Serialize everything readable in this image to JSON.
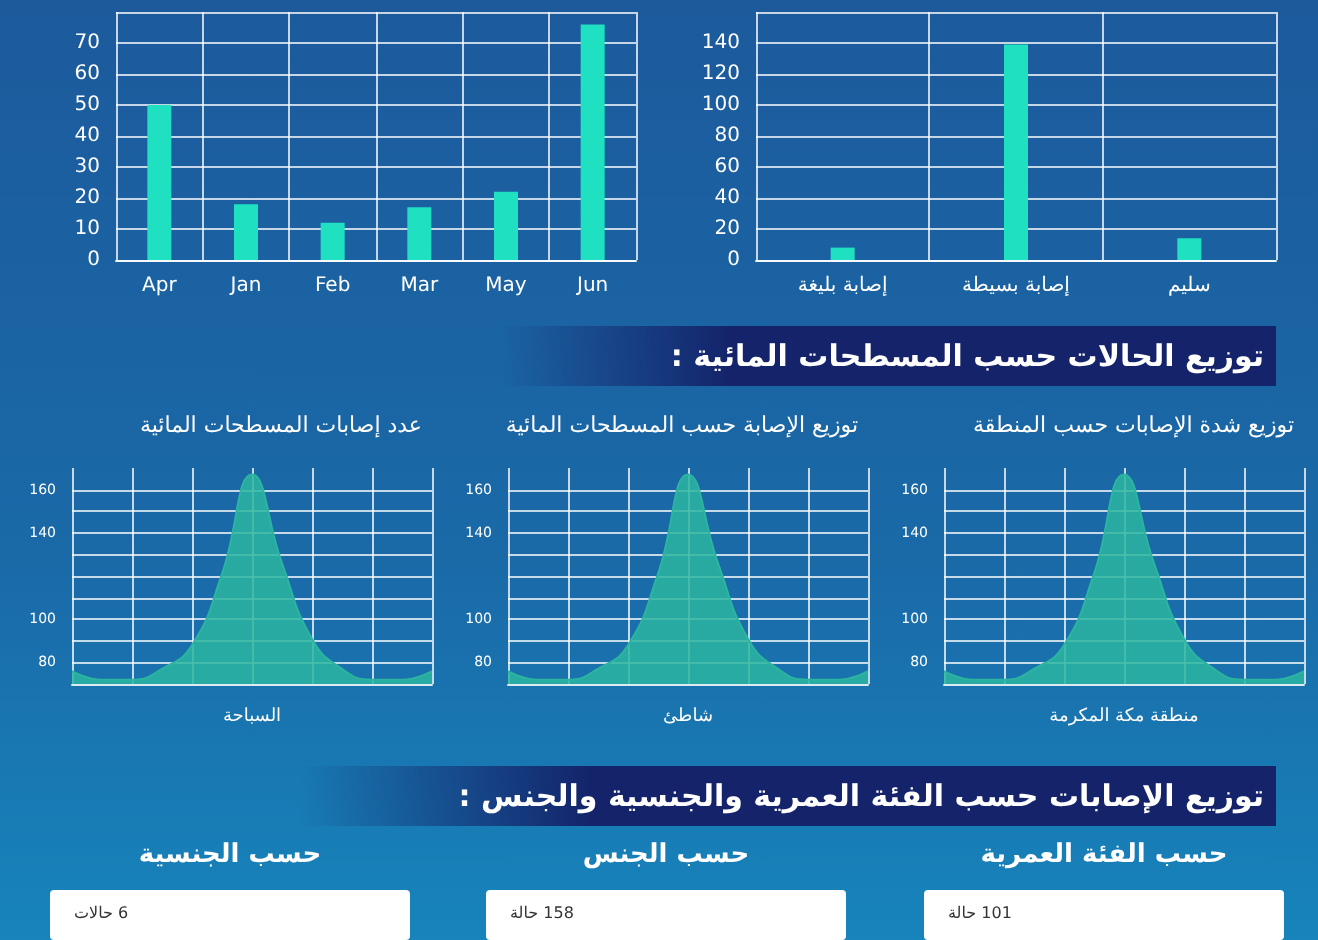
{
  "chart_data": [
    {
      "type": "bar",
      "categories": [
        "Apr",
        "Jan",
        "Feb",
        "Mar",
        "May",
        "Jun"
      ],
      "values": [
        50,
        18,
        12,
        17,
        22,
        76
      ],
      "color": "#1fe0c0",
      "ylim": [
        0,
        80
      ],
      "yticks": [
        0,
        10,
        20,
        30,
        40,
        50,
        60,
        70,
        {
          "value": 80,
          "label": null
        }
      ],
      "grid": true
    },
    {
      "type": "bar",
      "categories": [
        "إصابة بليغة",
        "إصابة بسيطة",
        "سليم"
      ],
      "values": [
        8,
        139,
        14
      ],
      "color": "#1fe0c0",
      "ylim": [
        0,
        160
      ],
      "yticks": [
        0,
        20,
        40,
        60,
        80,
        100,
        120,
        140,
        {
          "value": 160,
          "label": null
        }
      ],
      "grid": true
    },
    {
      "type": "other",
      "title": "توزيع الحالات حسب المسطحات المائية :"
    },
    {
      "type": "area",
      "title": "عدد إصابات المسطحات المائية",
      "xlabel": "السباحة",
      "categories": [
        null,
        null,
        null,
        null,
        null,
        null,
        null,
        null,
        null,
        null,
        null,
        null,
        null
      ],
      "values": [
        76,
        72,
        72,
        77,
        88,
        121,
        167,
        126,
        91,
        77,
        72,
        72,
        76
      ],
      "color": "#2bb5a0",
      "ylim": [
        70,
        170
      ],
      "yticks": [
        80,
        {
          "value": 90,
          "label": null
        },
        100,
        {
          "value": 110,
          "label": null
        },
        {
          "value": 120,
          "label": null
        },
        {
          "value": 130,
          "label": null
        },
        140,
        {
          "value": 150,
          "label": null
        },
        160
      ],
      "grid": true
    },
    {
      "type": "area",
      "title": "توزيع الإصابة حسب المسطحات المائية",
      "xlabel": "شاطئ",
      "categories": [
        null,
        null,
        null,
        null,
        null,
        null,
        null,
        null,
        null,
        null,
        null,
        null,
        null
      ],
      "values": [
        76,
        72,
        72,
        77,
        88,
        121,
        167,
        126,
        91,
        77,
        72,
        72,
        76
      ],
      "color": "#2bb5a0",
      "ylim": [
        70,
        170
      ],
      "yticks": [
        80,
        {
          "value": 90,
          "label": null
        },
        100,
        {
          "value": 110,
          "label": null
        },
        {
          "value": 120,
          "label": null
        },
        {
          "value": 130,
          "label": null
        },
        140,
        {
          "value": 150,
          "label": null
        },
        160
      ],
      "grid": true
    },
    {
      "type": "area",
      "title": "توزيع شدة الإصابات حسب المنطقة",
      "xlabel": "منطقة مكة المكرمة",
      "categories": [
        null,
        null,
        null,
        null,
        null,
        null,
        null,
        null,
        null,
        null,
        null,
        null,
        null
      ],
      "values": [
        76,
        72,
        72,
        77,
        88,
        121,
        167,
        126,
        91,
        77,
        72,
        72,
        76
      ],
      "color": "#2bb5a0",
      "ylim": [
        70,
        170
      ],
      "yticks": [
        80,
        {
          "value": 90,
          "label": null
        },
        100,
        {
          "value": 110,
          "label": null
        },
        {
          "value": 120,
          "label": null
        },
        {
          "value": 130,
          "label": null
        },
        140,
        {
          "value": 150,
          "label": null
        },
        160
      ],
      "grid": true
    },
    {
      "type": "other",
      "title": "توزيع الإصابات حسب الفئة العمرية والجنسية والجنس :"
    },
    {
      "type": "other",
      "title": "حسب الجنسية",
      "annotations": [
        "6 حالات"
      ]
    },
    {
      "type": "other",
      "title": "حسب الجنس",
      "annotations": [
        "158 حالة"
      ]
    },
    {
      "type": "other",
      "title": "حسب الفئة العمرية",
      "annotations": [
        "101 حالة"
      ]
    }
  ]
}
